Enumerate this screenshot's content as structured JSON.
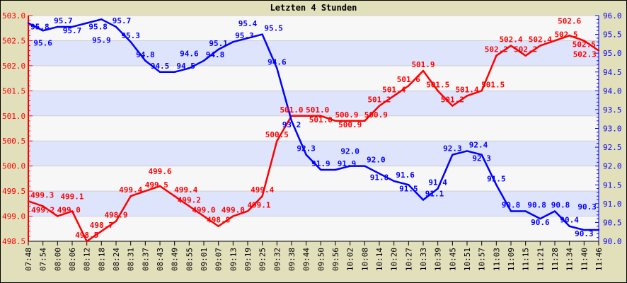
{
  "chart_data": {
    "type": "line",
    "title": "Letzten 4 Stunden",
    "x": [
      "07:48",
      "07:54",
      "08:00",
      "08:06",
      "08:12",
      "08:18",
      "08:24",
      "08:31",
      "08:37",
      "08:43",
      "08:49",
      "08:55",
      "09:01",
      "09:07",
      "09:13",
      "09:19",
      "09:25",
      "09:32",
      "09:38",
      "09:44",
      "09:50",
      "09:56",
      "10:02",
      "10:08",
      "10:14",
      "10:20",
      "10:27",
      "10:33",
      "10:39",
      "10:45",
      "10:51",
      "10:57",
      "11:03",
      "11:09",
      "11:15",
      "11:21",
      "11:28",
      "11:34",
      "11:40",
      "11:46"
    ],
    "series": [
      {
        "axis": "left",
        "color": "#ff0000",
        "values": [
          499.3,
          499.2,
          499.0,
          499.1,
          498.5,
          498.7,
          498.9,
          499.4,
          499.5,
          499.6,
          499.4,
          499.2,
          499.0,
          498.8,
          499.0,
          499.1,
          499.4,
          500.5,
          501.0,
          501.0,
          501.0,
          500.9,
          500.9,
          500.9,
          501.2,
          501.4,
          501.6,
          501.9,
          501.5,
          501.2,
          501.4,
          501.5,
          502.2,
          502.4,
          502.2,
          502.4,
          502.5,
          502.6,
          502.5,
          502.3
        ]
      },
      {
        "axis": "right",
        "color": "#0000ff",
        "values": [
          95.8,
          95.6,
          95.7,
          95.7,
          95.8,
          95.9,
          95.7,
          95.3,
          94.8,
          94.5,
          94.5,
          94.6,
          94.8,
          95.1,
          95.3,
          95.4,
          95.5,
          94.6,
          93.2,
          92.3,
          91.9,
          91.9,
          92.0,
          92.0,
          91.8,
          91.6,
          91.5,
          91.1,
          91.4,
          92.3,
          92.4,
          92.3,
          91.5,
          90.8,
          90.8,
          90.6,
          90.8,
          90.4,
          90.3,
          90.3
        ]
      }
    ],
    "y_left": {
      "range": [
        498.5,
        503.0
      ],
      "ticks": [
        "498.5",
        "499.0",
        "499.5",
        "500.0",
        "500.5",
        "501.0",
        "501.5",
        "502.0",
        "502.5",
        "503.0"
      ],
      "color": "#ff0000"
    },
    "y_right": {
      "range": [
        90.0,
        96.0
      ],
      "ticks": [
        "90.0",
        "90.5",
        "91.0",
        "91.5",
        "92.0",
        "92.5",
        "93.0",
        "93.5",
        "94.0",
        "94.5",
        "95.0",
        "95.5",
        "96.0"
      ],
      "color": "#0000ff"
    },
    "grid": true,
    "band_colors": [
      "#f7f7f7",
      "#dde4fc"
    ],
    "background": "#e2dfbb",
    "data_labels": true
  }
}
